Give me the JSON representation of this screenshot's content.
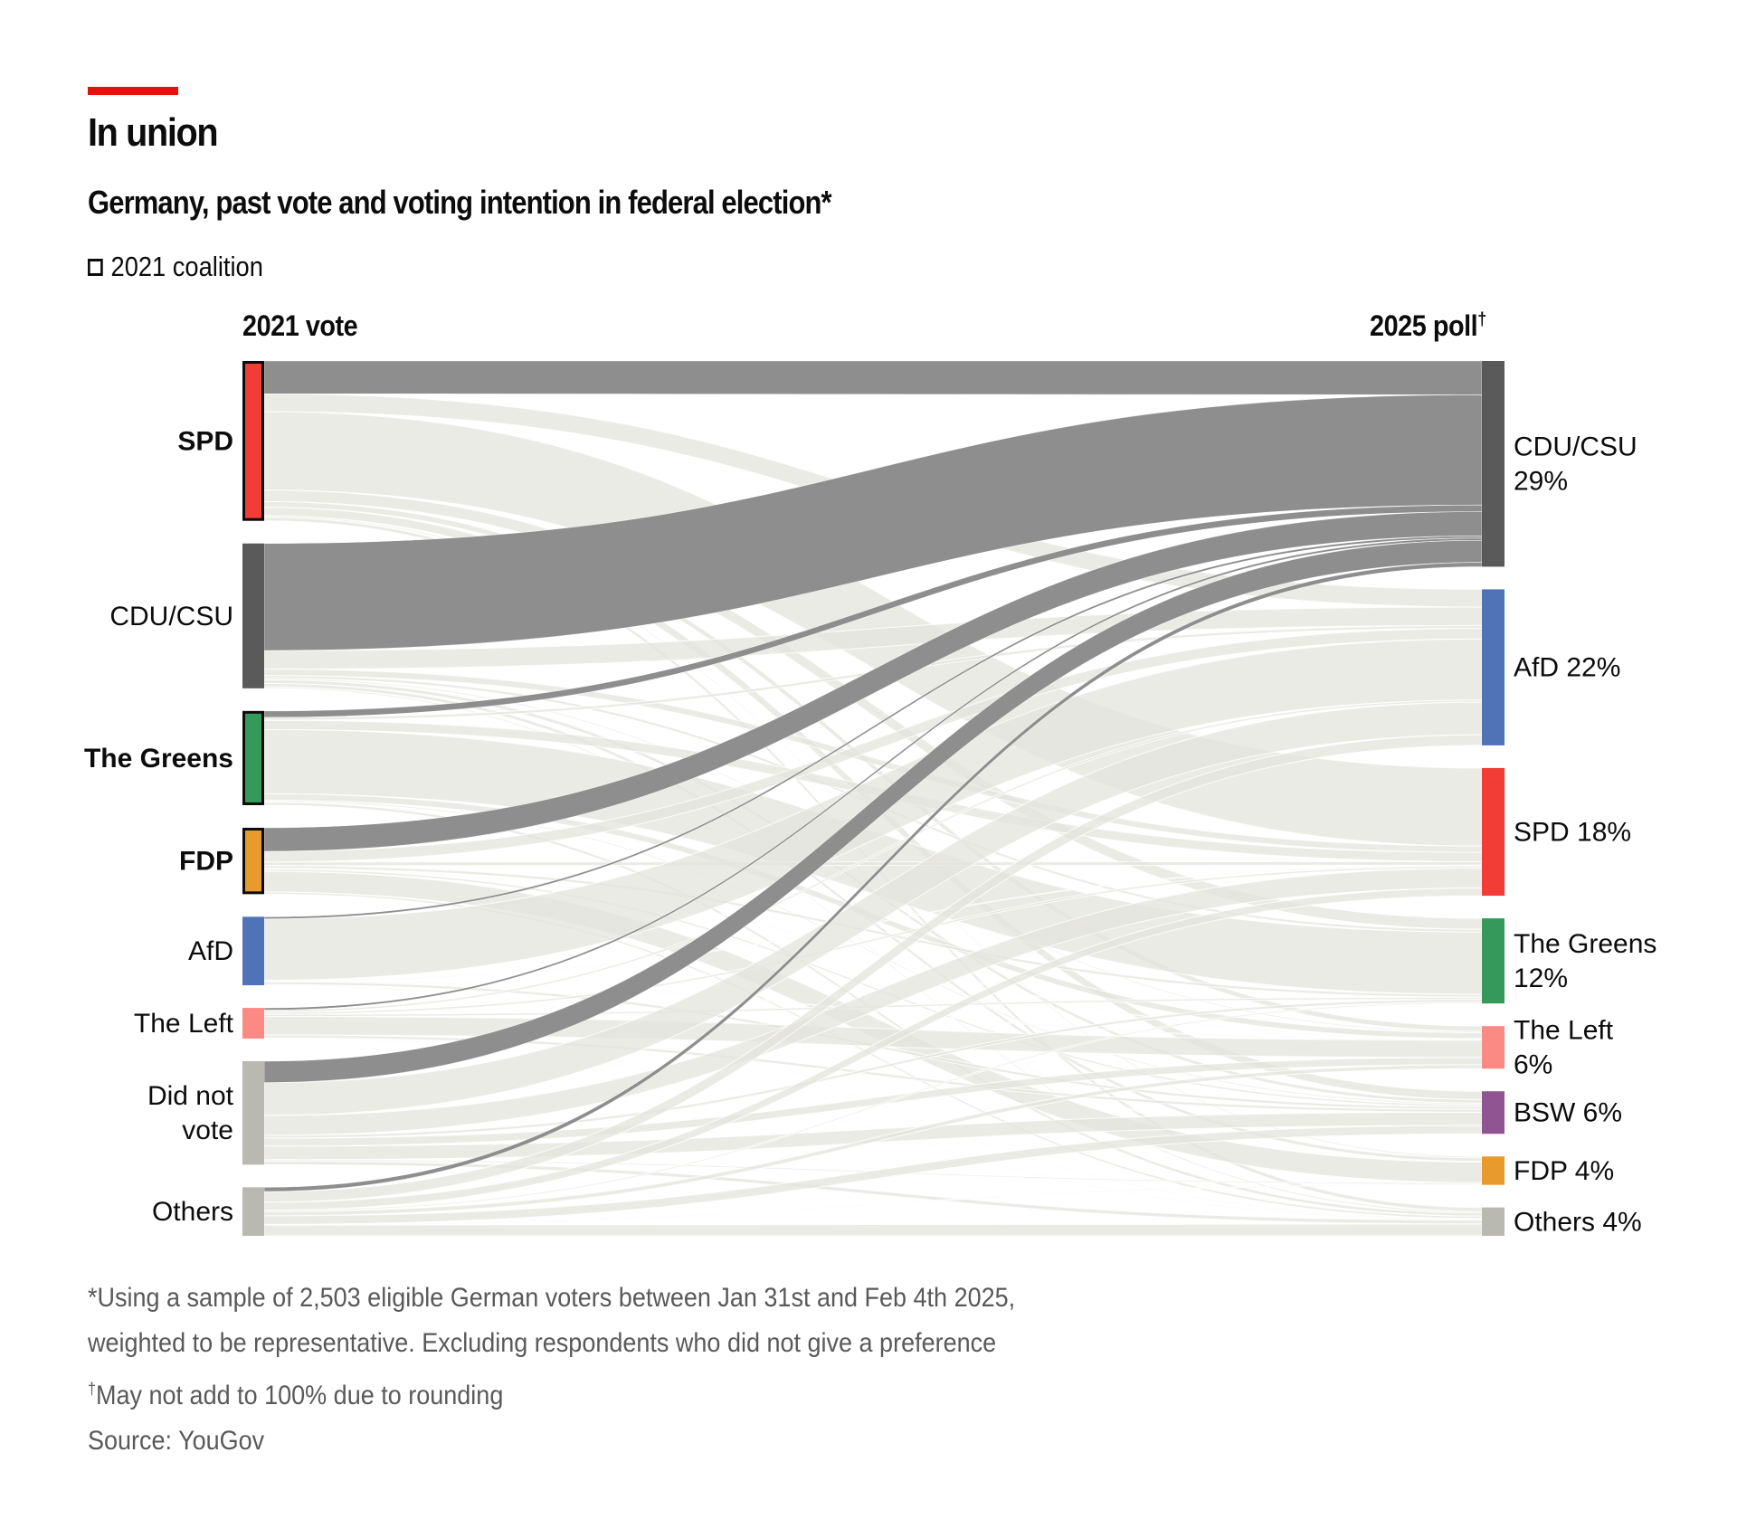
{
  "header": {
    "title": "In union",
    "subtitle": "Germany, past vote and voting intention in federal election*",
    "legend_label": "2021 coalition",
    "legend_icon": "outlined-square-icon",
    "accent_color": "#e3120b"
  },
  "chart_data": {
    "type": "sankey",
    "title": "In union",
    "subtitle": "Germany, past vote and voting intention in federal election*",
    "left_column_label": "2021 vote",
    "right_column_label": "2025 poll",
    "right_column_mark": "†",
    "units": "% of respondents",
    "legend": [
      {
        "label": "2021 coalition",
        "marker": "outlined box",
        "applies_to": [
          "SPD",
          "The Greens",
          "FDP"
        ]
      }
    ],
    "highlight": {
      "target": "CDU/CSU",
      "flow_color": "#8a8a8a",
      "other_flow_color": "#e4e4de"
    },
    "sources": [
      {
        "name": "SPD",
        "label_lines": [
          "SPD"
        ],
        "coalition": true,
        "color": "#f23c36",
        "value": 22.4
      },
      {
        "name": "CDU/CSU",
        "label_lines": [
          "CDU/CSU"
        ],
        "coalition": false,
        "color": "#5a5a5a",
        "value": 20.3
      },
      {
        "name": "The Greens",
        "label_lines": [
          "The Greens"
        ],
        "coalition": true,
        "color": "#36995c",
        "value": 13.2
      },
      {
        "name": "FDP",
        "label_lines": [
          "FDP"
        ],
        "coalition": true,
        "color": "#e99a2c",
        "value": 9.3
      },
      {
        "name": "AfD",
        "label_lines": [
          "AfD"
        ],
        "coalition": false,
        "color": "#5073b8",
        "value": 9.6
      },
      {
        "name": "The Left",
        "label_lines": [
          "The Left"
        ],
        "coalition": false,
        "color": "#fb8a84",
        "value": 4.3
      },
      {
        "name": "Did not vote",
        "label_lines": [
          "Did not",
          "vote"
        ],
        "coalition": false,
        "color": "#b9b9b1",
        "value": 14.5
      },
      {
        "name": "Others",
        "label_lines": [
          "Others"
        ],
        "coalition": false,
        "color": "#b9b9b1",
        "value": 6.8
      }
    ],
    "targets": [
      {
        "name": "CDU/CSU",
        "label_lines": [
          "CDU/CSU",
          "29%"
        ],
        "color": "#5a5a5a",
        "value": 29
      },
      {
        "name": "AfD",
        "label_lines": [
          "AfD 22%"
        ],
        "color": "#5073b8",
        "value": 22
      },
      {
        "name": "SPD",
        "label_lines": [
          "SPD 18%"
        ],
        "color": "#f23c36",
        "value": 18
      },
      {
        "name": "The Greens",
        "label_lines": [
          "The Greens",
          "12%"
        ],
        "color": "#36995c",
        "value": 12
      },
      {
        "name": "The Left",
        "label_lines": [
          "The Left",
          "6%"
        ],
        "color": "#fb8a84",
        "value": 6
      },
      {
        "name": "BSW",
        "label_lines": [
          "BSW 6%"
        ],
        "color": "#8f5491",
        "value": 6
      },
      {
        "name": "FDP",
        "label_lines": [
          "FDP 4%"
        ],
        "color": "#e99a2c",
        "value": 4
      },
      {
        "name": "Others",
        "label_lines": [
          "Others 4%"
        ],
        "color": "#b9b9b1",
        "value": 4
      }
    ],
    "flows": [
      [
        4.6,
        2.5,
        11.0,
        1.6,
        0.8,
        1.2,
        0.2,
        0.5
      ],
      [
        15.0,
        2.6,
        0.9,
        0.4,
        0.2,
        0.5,
        0.5,
        0.2
      ],
      [
        0.9,
        0.4,
        1.3,
        9.0,
        0.9,
        0.2,
        0.1,
        0.4
      ],
      [
        3.3,
        1.5,
        0.5,
        0.4,
        0.1,
        0.3,
        2.9,
        0.3
      ],
      [
        0.3,
        8.6,
        0.1,
        0.0,
        0.1,
        0.4,
        0.0,
        0.1
      ],
      [
        0.3,
        0.3,
        0.3,
        0.3,
        2.6,
        0.4,
        0.0,
        0.1
      ],
      [
        3.0,
        4.6,
        2.8,
        0.4,
        1.1,
        1.9,
        0.2,
        0.5
      ],
      [
        0.6,
        1.5,
        1.1,
        0.2,
        0.6,
        1.2,
        0.1,
        1.5
      ]
    ],
    "flows_note": "rows = 2021 vote (sources order), columns = 2025 poll (targets order); values estimated from band widths"
  },
  "footer": {
    "note1_line1": "*Using a sample of 2,503 eligible German voters between Jan 31st and Feb 4th 2025,",
    "note1_line2": "weighted to be representative. Excluding respondents who did not give a preference",
    "note2_mark": "†",
    "note2": "May not add to 100% due to rounding",
    "source": "Source: YouGov"
  }
}
